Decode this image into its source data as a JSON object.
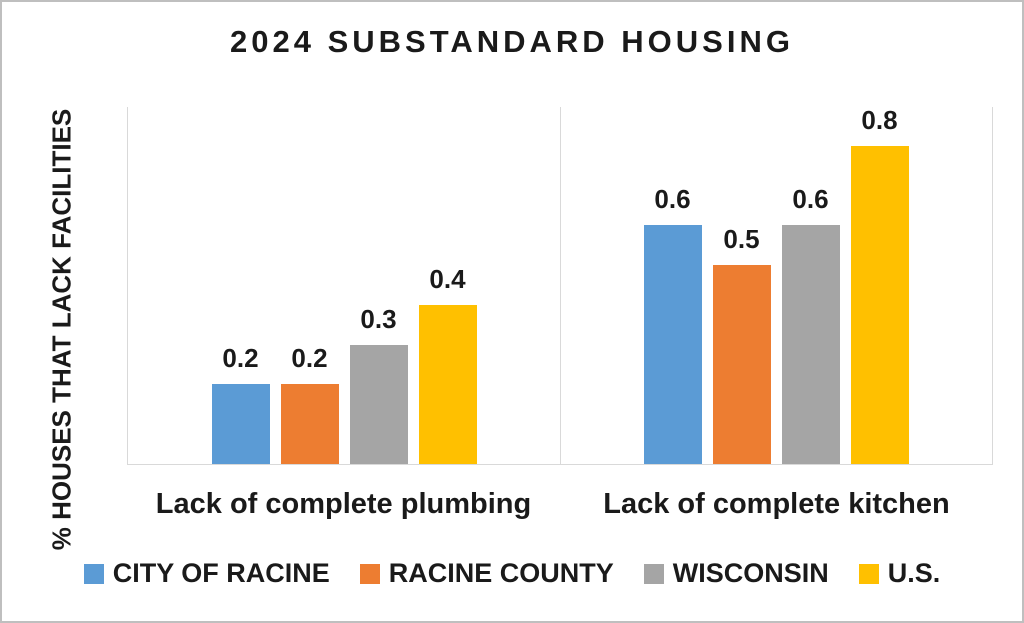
{
  "chart_data": {
    "type": "bar",
    "title": "2024 SUBSTANDARD HOUSING",
    "ylabel": "% HOUSES THAT LACK FACILITIES",
    "xlabel": "",
    "categories": [
      "Lack of complete plumbing",
      "Lack of complete kitchen"
    ],
    "series": [
      {
        "name": "CITY OF RACINE",
        "color": "#5B9BD5",
        "values": [
          0.2,
          0.6
        ]
      },
      {
        "name": "RACINE COUNTY",
        "color": "#ED7D31",
        "values": [
          0.2,
          0.5
        ]
      },
      {
        "name": "WISCONSIN",
        "color": "#A5A5A5",
        "values": [
          0.3,
          0.6
        ]
      },
      {
        "name": "U.S.",
        "color": "#FFC000",
        "values": [
          0.4,
          0.8
        ]
      }
    ],
    "ylim": [
      0,
      0.9
    ],
    "data_labels": true,
    "data_label_format": "0.1f",
    "legend_position": "bottom",
    "grid": "category-separator-vertical-lines",
    "axis_tick_labels_shown": false,
    "gridline_color": "#D9D9D9",
    "frame_border_color": "#BFBFBF",
    "background_color": "#FFFFFF",
    "text_color": "#1A1A1A"
  }
}
